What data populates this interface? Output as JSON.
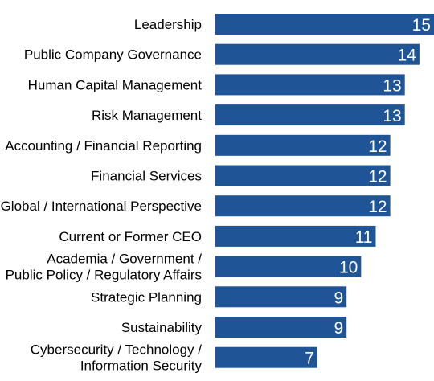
{
  "chart_data": {
    "type": "bar",
    "orientation": "horizontal",
    "categories": [
      [
        "Leadership"
      ],
      [
        "Public Company Governance"
      ],
      [
        "Human Capital Management"
      ],
      [
        "Risk Management"
      ],
      [
        "Accounting / Financial Reporting"
      ],
      [
        "Financial Services"
      ],
      [
        "Global / International Perspective"
      ],
      [
        "Current or Former CEO"
      ],
      [
        "Academia / Government /",
        "Public Policy / Regulatory Affairs"
      ],
      [
        "Strategic Planning"
      ],
      [
        "Sustainability"
      ],
      [
        "Cybersecurity / Technology /",
        "Information Security"
      ]
    ],
    "values": [
      15,
      14,
      13,
      13,
      12,
      12,
      12,
      11,
      10,
      9,
      9,
      7
    ],
    "data_labels": true,
    "xlim": [
      0,
      15
    ],
    "grid": false,
    "legend": "none",
    "colors": {
      "bar": "#1f5597",
      "label": "#000000",
      "value_label": "#ffffff"
    }
  }
}
